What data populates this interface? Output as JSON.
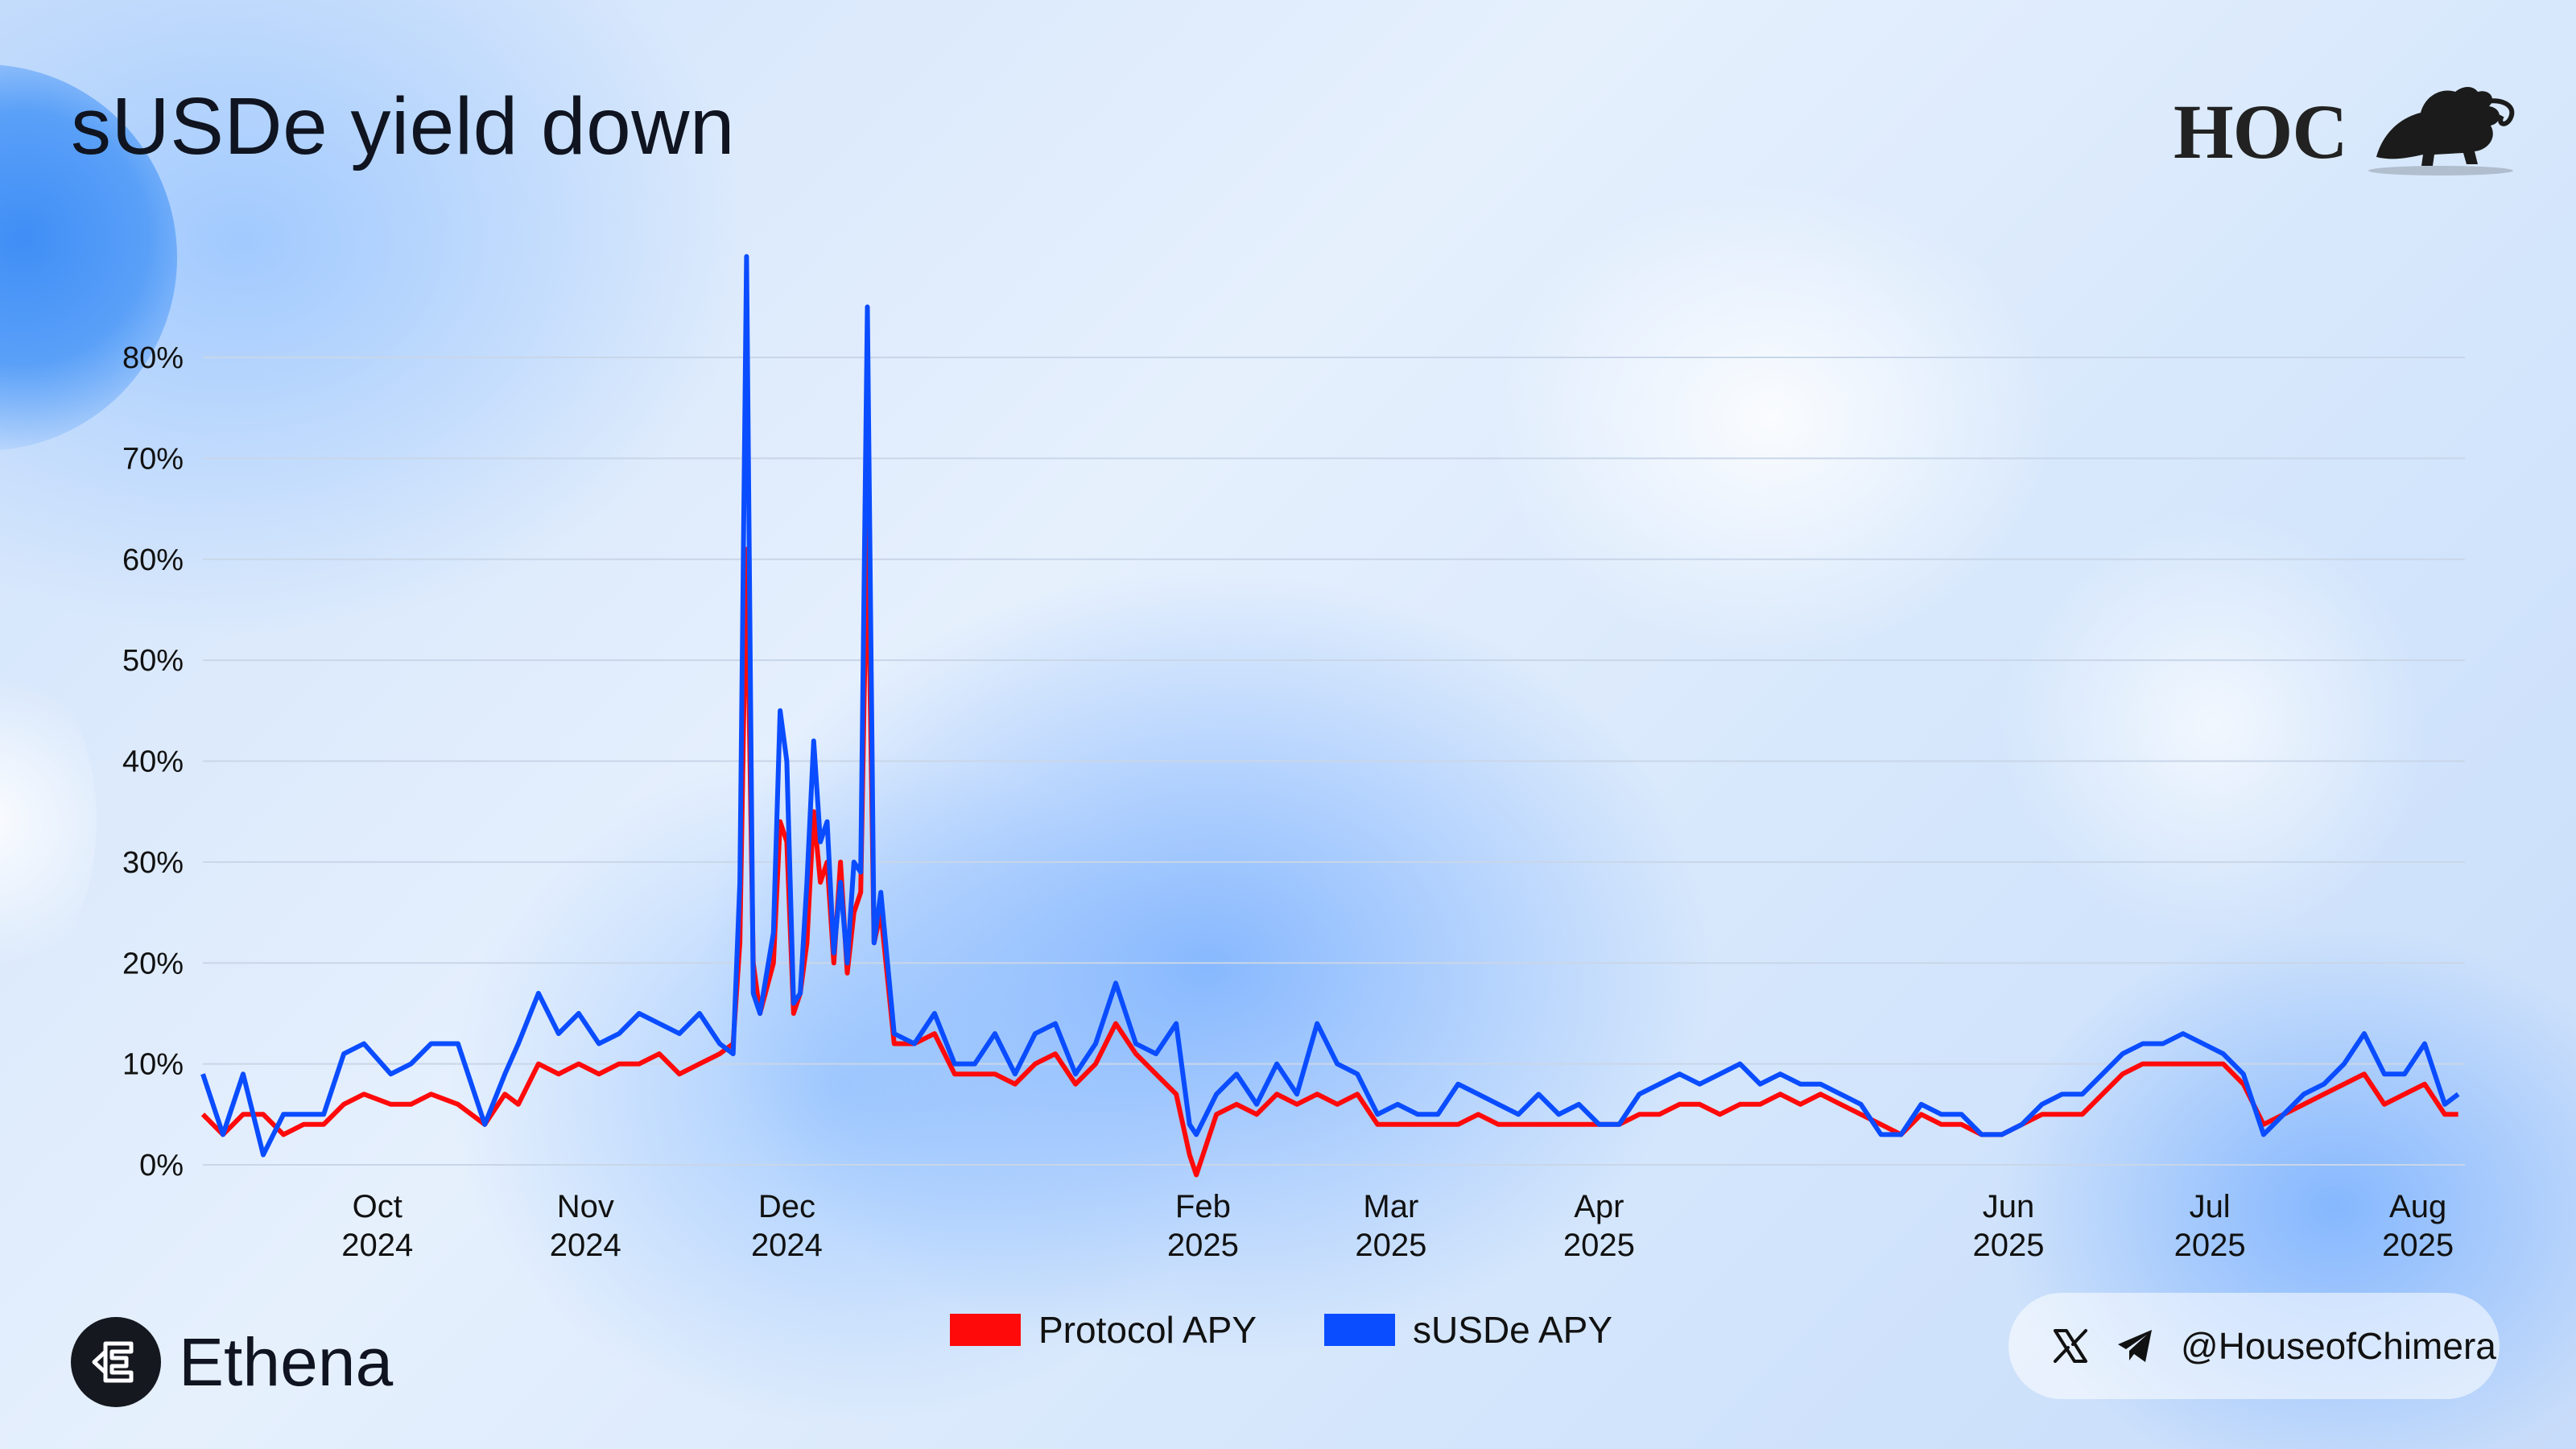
{
  "title": "sUSDe yield down",
  "brand": {
    "name": "Ethena",
    "logo_icon": "ethena-logo-icon"
  },
  "watermark": {
    "text": "HOC",
    "icon": "chimera-lion-icon"
  },
  "social": {
    "handle": "@HouseofChimera",
    "icons": [
      "x-icon",
      "telegram-icon"
    ]
  },
  "colors": {
    "protocol": "#ff0a0a",
    "susde": "#0a4cff",
    "grid": "#c9d6e8"
  },
  "chart_data": {
    "type": "line",
    "title": "sUSDe yield down",
    "xlabel": "",
    "ylabel": "",
    "ylim": [
      0,
      80
    ],
    "grid": true,
    "legend_position": "bottom-center",
    "y_ticks": [
      "0%",
      "10%",
      "20%",
      "30%",
      "40%",
      "50%",
      "60%",
      "70%",
      "80%"
    ],
    "x_ticks": [
      {
        "date": "2024-10-01",
        "line1": "Oct",
        "line2": "2024"
      },
      {
        "date": "2024-11-01",
        "line1": "Nov",
        "line2": "2024"
      },
      {
        "date": "2024-12-01",
        "line1": "Dec",
        "line2": "2024"
      },
      {
        "date": "2025-02-01",
        "line1": "Feb",
        "line2": "2025"
      },
      {
        "date": "2025-03-01",
        "line1": "Mar",
        "line2": "2025"
      },
      {
        "date": "2025-04-01",
        "line1": "Apr",
        "line2": "2025"
      },
      {
        "date": "2025-06-01",
        "line1": "Jun",
        "line2": "2025"
      },
      {
        "date": "2025-07-01",
        "line1": "Jul",
        "line2": "2025"
      },
      {
        "date": "2025-08-01",
        "line1": "Aug",
        "line2": "2025"
      }
    ],
    "series": [
      {
        "name": "Protocol APY",
        "color": "#ff0a0a",
        "points": [
          [
            "2024-09-05",
            5
          ],
          [
            "2024-09-08",
            3
          ],
          [
            "2024-09-11",
            5
          ],
          [
            "2024-09-14",
            5
          ],
          [
            "2024-09-17",
            3
          ],
          [
            "2024-09-20",
            4
          ],
          [
            "2024-09-23",
            4
          ],
          [
            "2024-09-26",
            6
          ],
          [
            "2024-09-29",
            7
          ],
          [
            "2024-10-03",
            6
          ],
          [
            "2024-10-06",
            6
          ],
          [
            "2024-10-09",
            7
          ],
          [
            "2024-10-13",
            6
          ],
          [
            "2024-10-17",
            4
          ],
          [
            "2024-10-20",
            7
          ],
          [
            "2024-10-22",
            6
          ],
          [
            "2024-10-25",
            10
          ],
          [
            "2024-10-28",
            9
          ],
          [
            "2024-10-31",
            10
          ],
          [
            "2024-11-03",
            9
          ],
          [
            "2024-11-06",
            10
          ],
          [
            "2024-11-09",
            10
          ],
          [
            "2024-11-12",
            11
          ],
          [
            "2024-11-15",
            9
          ],
          [
            "2024-11-18",
            10
          ],
          [
            "2024-11-21",
            11
          ],
          [
            "2024-11-23",
            12
          ],
          [
            "2024-11-24",
            22
          ],
          [
            "2024-11-25",
            61
          ],
          [
            "2024-11-26",
            20
          ],
          [
            "2024-11-27",
            15
          ],
          [
            "2024-11-29",
            20
          ],
          [
            "2024-11-30",
            34
          ],
          [
            "2024-12-01",
            32
          ],
          [
            "2024-12-02",
            15
          ],
          [
            "2024-12-03",
            17
          ],
          [
            "2024-12-04",
            22
          ],
          [
            "2024-12-05",
            35
          ],
          [
            "2024-12-06",
            28
          ],
          [
            "2024-12-07",
            30
          ],
          [
            "2024-12-08",
            20
          ],
          [
            "2024-12-09",
            30
          ],
          [
            "2024-12-10",
            19
          ],
          [
            "2024-12-11",
            25
          ],
          [
            "2024-12-12",
            27
          ],
          [
            "2024-12-13",
            64
          ],
          [
            "2024-12-14",
            22
          ],
          [
            "2024-12-15",
            25
          ],
          [
            "2024-12-17",
            12
          ],
          [
            "2024-12-20",
            12
          ],
          [
            "2024-12-23",
            13
          ],
          [
            "2024-12-26",
            9
          ],
          [
            "2024-12-29",
            9
          ],
          [
            "2025-01-01",
            9
          ],
          [
            "2025-01-04",
            8
          ],
          [
            "2025-01-07",
            10
          ],
          [
            "2025-01-10",
            11
          ],
          [
            "2025-01-13",
            8
          ],
          [
            "2025-01-16",
            10
          ],
          [
            "2025-01-19",
            14
          ],
          [
            "2025-01-22",
            11
          ],
          [
            "2025-01-25",
            9
          ],
          [
            "2025-01-28",
            7
          ],
          [
            "2025-01-30",
            1
          ],
          [
            "2025-01-31",
            -1
          ],
          [
            "2025-02-03",
            5
          ],
          [
            "2025-02-06",
            6
          ],
          [
            "2025-02-09",
            5
          ],
          [
            "2025-02-12",
            7
          ],
          [
            "2025-02-15",
            6
          ],
          [
            "2025-02-18",
            7
          ],
          [
            "2025-02-21",
            6
          ],
          [
            "2025-02-24",
            7
          ],
          [
            "2025-02-27",
            4
          ],
          [
            "2025-03-02",
            4
          ],
          [
            "2025-03-05",
            4
          ],
          [
            "2025-03-08",
            4
          ],
          [
            "2025-03-11",
            4
          ],
          [
            "2025-03-14",
            5
          ],
          [
            "2025-03-17",
            4
          ],
          [
            "2025-03-20",
            4
          ],
          [
            "2025-03-23",
            4
          ],
          [
            "2025-03-26",
            4
          ],
          [
            "2025-03-29",
            4
          ],
          [
            "2025-04-01",
            4
          ],
          [
            "2025-04-04",
            4
          ],
          [
            "2025-04-07",
            5
          ],
          [
            "2025-04-10",
            5
          ],
          [
            "2025-04-13",
            6
          ],
          [
            "2025-04-16",
            6
          ],
          [
            "2025-04-19",
            5
          ],
          [
            "2025-04-22",
            6
          ],
          [
            "2025-04-25",
            6
          ],
          [
            "2025-04-28",
            7
          ],
          [
            "2025-05-01",
            6
          ],
          [
            "2025-05-04",
            7
          ],
          [
            "2025-05-07",
            6
          ],
          [
            "2025-05-10",
            5
          ],
          [
            "2025-05-13",
            4
          ],
          [
            "2025-05-16",
            3
          ],
          [
            "2025-05-19",
            5
          ],
          [
            "2025-05-22",
            4
          ],
          [
            "2025-05-25",
            4
          ],
          [
            "2025-05-28",
            3
          ],
          [
            "2025-05-31",
            3
          ],
          [
            "2025-06-03",
            4
          ],
          [
            "2025-06-06",
            5
          ],
          [
            "2025-06-09",
            5
          ],
          [
            "2025-06-12",
            5
          ],
          [
            "2025-06-15",
            7
          ],
          [
            "2025-06-18",
            9
          ],
          [
            "2025-06-21",
            10
          ],
          [
            "2025-06-24",
            10
          ],
          [
            "2025-06-27",
            10
          ],
          [
            "2025-06-30",
            10
          ],
          [
            "2025-07-03",
            10
          ],
          [
            "2025-07-06",
            8
          ],
          [
            "2025-07-09",
            4
          ],
          [
            "2025-07-12",
            5
          ],
          [
            "2025-07-15",
            6
          ],
          [
            "2025-07-18",
            7
          ],
          [
            "2025-07-21",
            8
          ],
          [
            "2025-07-24",
            9
          ],
          [
            "2025-07-27",
            6
          ],
          [
            "2025-07-30",
            7
          ],
          [
            "2025-08-02",
            8
          ],
          [
            "2025-08-05",
            5
          ],
          [
            "2025-08-07",
            5
          ]
        ]
      },
      {
        "name": "sUSDe APY",
        "color": "#0a4cff",
        "points": [
          [
            "2024-09-05",
            9
          ],
          [
            "2024-09-08",
            3
          ],
          [
            "2024-09-11",
            9
          ],
          [
            "2024-09-14",
            1
          ],
          [
            "2024-09-17",
            5
          ],
          [
            "2024-09-20",
            5
          ],
          [
            "2024-09-23",
            5
          ],
          [
            "2024-09-26",
            11
          ],
          [
            "2024-09-29",
            12
          ],
          [
            "2024-10-03",
            9
          ],
          [
            "2024-10-06",
            10
          ],
          [
            "2024-10-09",
            12
          ],
          [
            "2024-10-13",
            12
          ],
          [
            "2024-10-17",
            4
          ],
          [
            "2024-10-20",
            9
          ],
          [
            "2024-10-22",
            12
          ],
          [
            "2024-10-25",
            17
          ],
          [
            "2024-10-28",
            13
          ],
          [
            "2024-10-31",
            15
          ],
          [
            "2024-11-03",
            12
          ],
          [
            "2024-11-06",
            13
          ],
          [
            "2024-11-09",
            15
          ],
          [
            "2024-11-12",
            14
          ],
          [
            "2024-11-15",
            13
          ],
          [
            "2024-11-18",
            15
          ],
          [
            "2024-11-21",
            12
          ],
          [
            "2024-11-23",
            11
          ],
          [
            "2024-11-24",
            28
          ],
          [
            "2024-11-25",
            90
          ],
          [
            "2024-11-26",
            17
          ],
          [
            "2024-11-27",
            15
          ],
          [
            "2024-11-29",
            23
          ],
          [
            "2024-11-30",
            45
          ],
          [
            "2024-12-01",
            40
          ],
          [
            "2024-12-02",
            16
          ],
          [
            "2024-12-03",
            17
          ],
          [
            "2024-12-04",
            28
          ],
          [
            "2024-12-05",
            42
          ],
          [
            "2024-12-06",
            32
          ],
          [
            "2024-12-07",
            34
          ],
          [
            "2024-12-08",
            21
          ],
          [
            "2024-12-09",
            28
          ],
          [
            "2024-12-10",
            20
          ],
          [
            "2024-12-11",
            30
          ],
          [
            "2024-12-12",
            29
          ],
          [
            "2024-12-13",
            85
          ],
          [
            "2024-12-14",
            22
          ],
          [
            "2024-12-15",
            27
          ],
          [
            "2024-12-17",
            13
          ],
          [
            "2024-12-20",
            12
          ],
          [
            "2024-12-23",
            15
          ],
          [
            "2024-12-26",
            10
          ],
          [
            "2024-12-29",
            10
          ],
          [
            "2025-01-01",
            13
          ],
          [
            "2025-01-04",
            9
          ],
          [
            "2025-01-07",
            13
          ],
          [
            "2025-01-10",
            14
          ],
          [
            "2025-01-13",
            9
          ],
          [
            "2025-01-16",
            12
          ],
          [
            "2025-01-19",
            18
          ],
          [
            "2025-01-22",
            12
          ],
          [
            "2025-01-25",
            11
          ],
          [
            "2025-01-28",
            14
          ],
          [
            "2025-01-30",
            4
          ],
          [
            "2025-01-31",
            3
          ],
          [
            "2025-02-03",
            7
          ],
          [
            "2025-02-06",
            9
          ],
          [
            "2025-02-09",
            6
          ],
          [
            "2025-02-12",
            10
          ],
          [
            "2025-02-15",
            7
          ],
          [
            "2025-02-18",
            14
          ],
          [
            "2025-02-21",
            10
          ],
          [
            "2025-02-24",
            9
          ],
          [
            "2025-02-27",
            5
          ],
          [
            "2025-03-02",
            6
          ],
          [
            "2025-03-05",
            5
          ],
          [
            "2025-03-08",
            5
          ],
          [
            "2025-03-11",
            8
          ],
          [
            "2025-03-14",
            7
          ],
          [
            "2025-03-17",
            6
          ],
          [
            "2025-03-20",
            5
          ],
          [
            "2025-03-23",
            7
          ],
          [
            "2025-03-26",
            5
          ],
          [
            "2025-03-29",
            6
          ],
          [
            "2025-04-01",
            4
          ],
          [
            "2025-04-04",
            4
          ],
          [
            "2025-04-07",
            7
          ],
          [
            "2025-04-10",
            8
          ],
          [
            "2025-04-13",
            9
          ],
          [
            "2025-04-16",
            8
          ],
          [
            "2025-04-19",
            9
          ],
          [
            "2025-04-22",
            10
          ],
          [
            "2025-04-25",
            8
          ],
          [
            "2025-04-28",
            9
          ],
          [
            "2025-05-01",
            8
          ],
          [
            "2025-05-04",
            8
          ],
          [
            "2025-05-07",
            7
          ],
          [
            "2025-05-10",
            6
          ],
          [
            "2025-05-13",
            3
          ],
          [
            "2025-05-16",
            3
          ],
          [
            "2025-05-19",
            6
          ],
          [
            "2025-05-22",
            5
          ],
          [
            "2025-05-25",
            5
          ],
          [
            "2025-05-28",
            3
          ],
          [
            "2025-05-31",
            3
          ],
          [
            "2025-06-03",
            4
          ],
          [
            "2025-06-06",
            6
          ],
          [
            "2025-06-09",
            7
          ],
          [
            "2025-06-12",
            7
          ],
          [
            "2025-06-15",
            9
          ],
          [
            "2025-06-18",
            11
          ],
          [
            "2025-06-21",
            12
          ],
          [
            "2025-06-24",
            12
          ],
          [
            "2025-06-27",
            13
          ],
          [
            "2025-06-30",
            12
          ],
          [
            "2025-07-03",
            11
          ],
          [
            "2025-07-06",
            9
          ],
          [
            "2025-07-09",
            3
          ],
          [
            "2025-07-12",
            5
          ],
          [
            "2025-07-15",
            7
          ],
          [
            "2025-07-18",
            8
          ],
          [
            "2025-07-21",
            10
          ],
          [
            "2025-07-24",
            13
          ],
          [
            "2025-07-27",
            9
          ],
          [
            "2025-07-30",
            9
          ],
          [
            "2025-08-02",
            12
          ],
          [
            "2025-08-05",
            6
          ],
          [
            "2025-08-07",
            7
          ]
        ]
      }
    ]
  }
}
